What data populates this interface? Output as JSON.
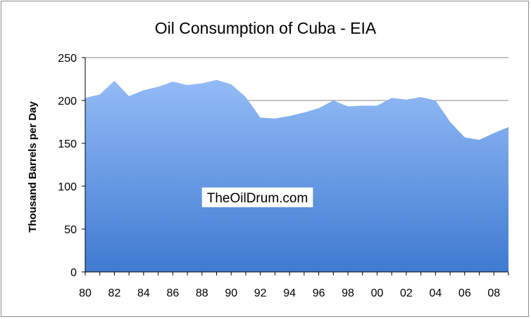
{
  "chart_data": {
    "type": "area",
    "title": "Oil Consumption of Cuba - EIA",
    "xlabel": "",
    "ylabel": "Thousand Barrels per Day",
    "x": [
      1980,
      1981,
      1982,
      1983,
      1984,
      1985,
      1986,
      1987,
      1988,
      1989,
      1990,
      1991,
      1992,
      1993,
      1994,
      1995,
      1996,
      1997,
      1998,
      1999,
      2000,
      2001,
      2002,
      2003,
      2004,
      2005,
      2006,
      2007,
      2008,
      2009
    ],
    "x_tick_labels": [
      "80",
      "82",
      "84",
      "86",
      "88",
      "90",
      "92",
      "94",
      "96",
      "98",
      "00",
      "02",
      "04",
      "06",
      "08"
    ],
    "y_ticks": [
      0,
      50,
      100,
      150,
      200,
      250
    ],
    "series": [
      {
        "values": [
          203,
          207,
          223,
          205,
          212,
          216,
          222,
          218,
          220,
          224,
          219,
          204,
          180,
          179,
          182,
          186,
          191,
          200,
          193,
          194,
          194,
          203,
          201,
          204,
          200,
          175,
          157,
          154,
          162,
          169
        ],
        "color_top": "#93bbf6",
        "color_bottom": "#3f7bd1"
      }
    ],
    "ylim": [
      0,
      250
    ],
    "grid": "horizontal",
    "legend": "none",
    "annotations": [
      {
        "text": "TheOilDrum.com",
        "x": 1991.8,
        "y": 87
      }
    ]
  }
}
